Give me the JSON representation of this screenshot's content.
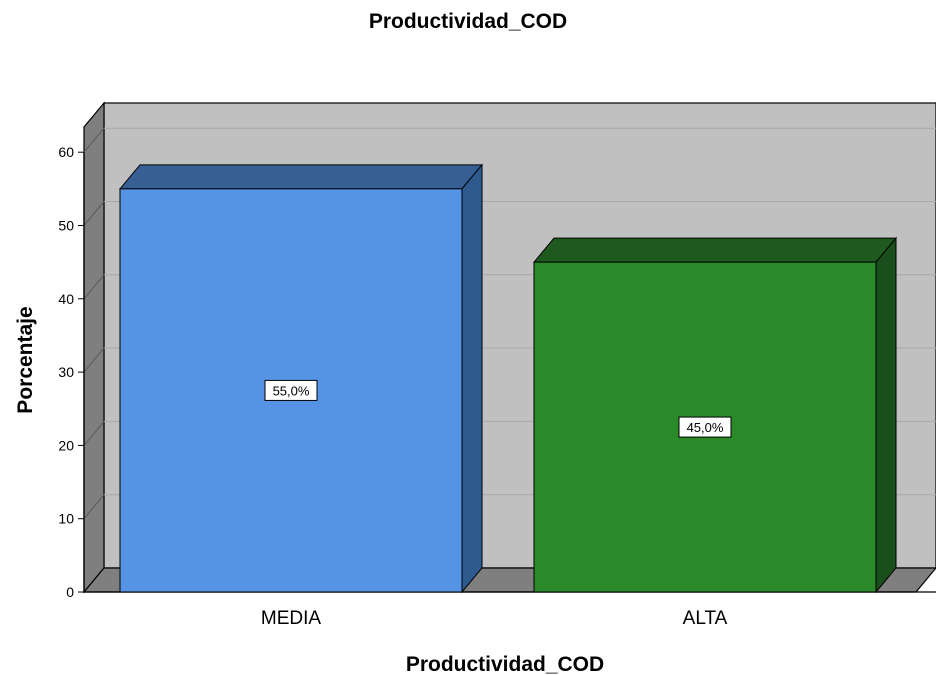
{
  "chart_data": {
    "type": "bar",
    "title": "Productividad_COD",
    "xlabel": "Productividad_COD",
    "ylabel": "Porcentaje",
    "categories": [
      "MEDIA",
      "ALTA"
    ],
    "values": [
      55.0,
      45.0
    ],
    "data_labels": [
      "55,0%",
      "45,0%"
    ],
    "ylim": [
      0,
      60
    ],
    "yticks": [
      0,
      10,
      20,
      30,
      40,
      50,
      60
    ],
    "grid": true,
    "legend": "none",
    "colors": {
      "bars": [
        "#5594e4",
        "#2a8a2a"
      ],
      "bar_tops": [
        "#385f94",
        "#1e5a1e"
      ],
      "bar_sides": [
        "#2f5a8e",
        "#1a4e1a"
      ],
      "panel": "#c0c0c0",
      "wall": "#7f7f7f"
    }
  }
}
